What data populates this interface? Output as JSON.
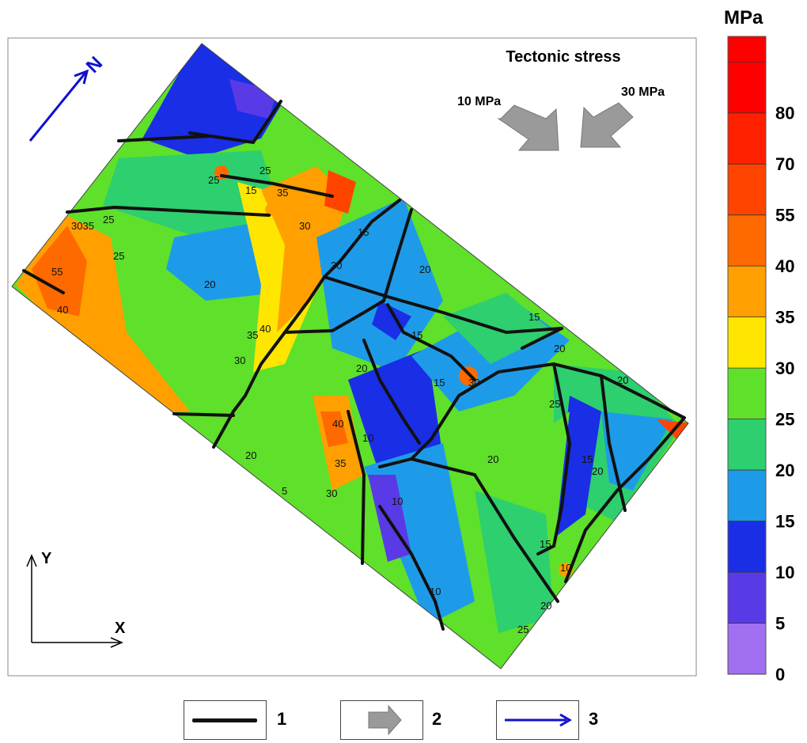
{
  "title": "Tectonic stress",
  "stress_left": "10 MPa",
  "stress_right": "30 MPa",
  "north_label": "N",
  "axis_y": "Y",
  "axis_x": "X",
  "colorbar": {
    "unit": "MPa",
    "ticks": [
      "0",
      "5",
      "10",
      "15",
      "20",
      "25",
      "30",
      "35",
      "40",
      "55",
      "70",
      "80"
    ],
    "colors": [
      "#a070f0",
      "#5a3ae6",
      "#1a2ee6",
      "#1e9be8",
      "#2ecf6e",
      "#5fe02a",
      "#ffe600",
      "#ffa000",
      "#ff6a00",
      "#ff4400",
      "#ff2000",
      "#ff0000"
    ]
  },
  "contour_labels": [
    "25",
    "15",
    "25",
    "35",
    "30",
    "25",
    "3035",
    "25",
    "55",
    "40",
    "20",
    "30",
    "15",
    "20",
    "30",
    "35",
    "40",
    "30",
    "20",
    "15",
    "15",
    "20",
    "15",
    "20",
    "25",
    "15",
    "20",
    "40",
    "35",
    "10",
    "10",
    "30",
    "20",
    "5",
    "10",
    "20",
    "25",
    "15",
    "20",
    "10"
  ],
  "legend": [
    {
      "num": "1",
      "symbol": "fault-line"
    },
    {
      "num": "2",
      "symbol": "gray-arrow"
    },
    {
      "num": "3",
      "symbol": "blue-arrow"
    }
  ]
}
